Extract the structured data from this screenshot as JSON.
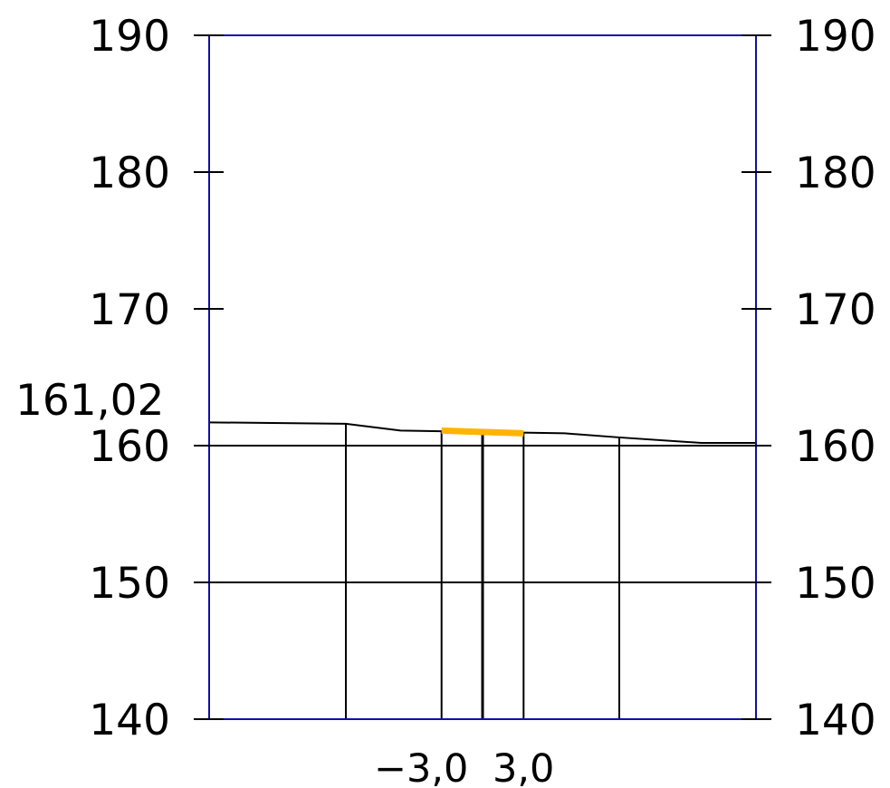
{
  "chart_data": {
    "type": "cross-section",
    "y_axis": {
      "range": [
        140,
        190
      ],
      "ticks": [
        190,
        180,
        170,
        160,
        150,
        140
      ],
      "tick_labels": [
        "190",
        "180",
        "170",
        "160",
        "150",
        "140"
      ],
      "right_tick_labels": [
        "190",
        "180",
        "170",
        "160",
        "150",
        "140"
      ]
    },
    "horizontal_grid_levels": [
      160,
      150
    ],
    "terrain_profile": [
      {
        "x": -10,
        "y": 161.7
      },
      {
        "x": -5,
        "y": 161.6
      },
      {
        "x": -3,
        "y": 161.1
      },
      {
        "x": 3,
        "y": 160.9
      },
      {
        "x": 5,
        "y": 160.6
      },
      {
        "x": 8,
        "y": 160.2
      },
      {
        "x": 10,
        "y": 160.2
      }
    ],
    "road": {
      "x_start": -1.5,
      "x_end": 1.5,
      "y_start": 161.1,
      "y_end": 160.9
    },
    "vertical_lines_x": [
      -5,
      -1.5,
      0,
      1.5,
      5
    ],
    "elevation_label": "161,02",
    "x_labels": [
      "−3,0",
      "3,0"
    ],
    "colors": {
      "frame": "#1010aa",
      "road": "#ffb400",
      "lines": "#000000"
    }
  }
}
